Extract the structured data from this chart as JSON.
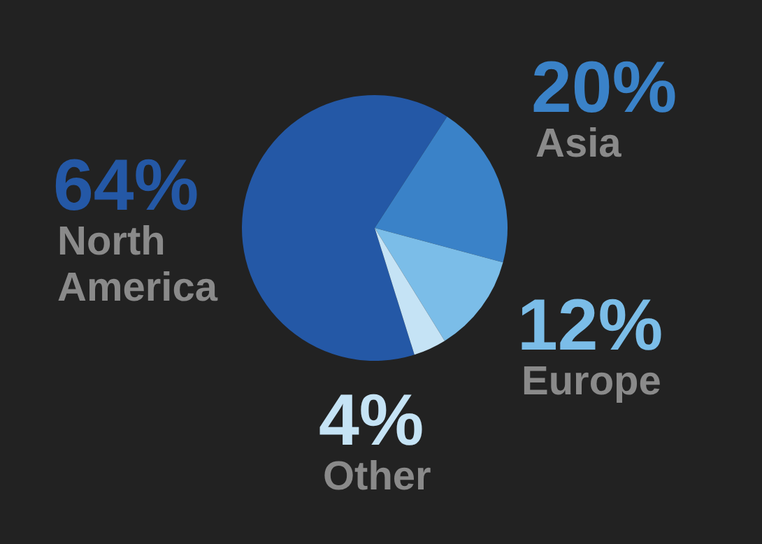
{
  "chart_data": {
    "type": "pie",
    "categories": [
      "North America",
      "Asia",
      "Europe",
      "Other"
    ],
    "values": [
      64,
      20,
      12,
      4
    ],
    "colors": [
      "#2458a6",
      "#3a82c8",
      "#7bbde8",
      "#c5e3f5"
    ],
    "value_labels": [
      "64%",
      "20%",
      "12%",
      "4%"
    ]
  }
}
